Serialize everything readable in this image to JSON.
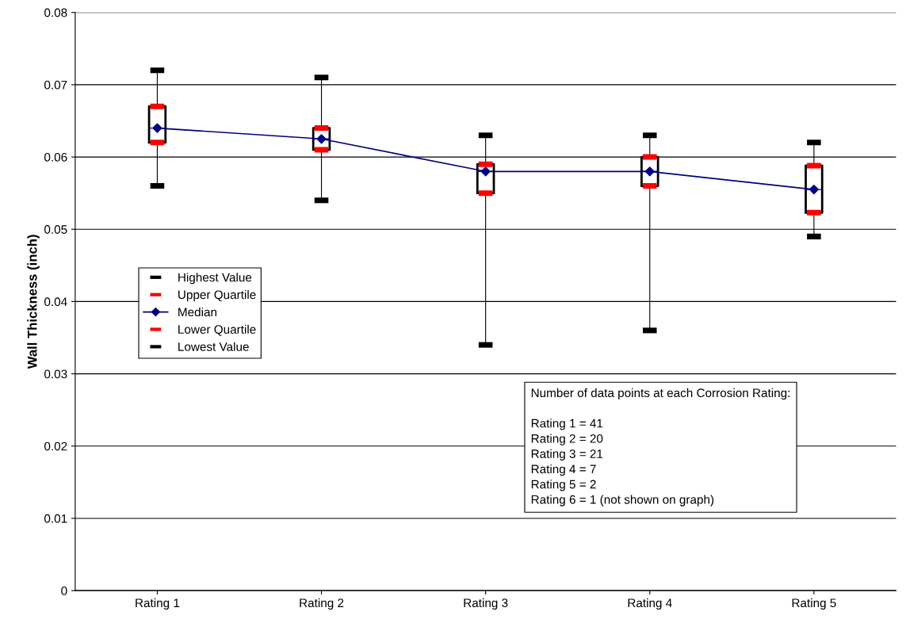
{
  "chart_data": {
    "type": "box",
    "ylabel": "Wall Thickness (inch)",
    "categories": [
      "Rating 1",
      "Rating 2",
      "Rating 3",
      "Rating 4",
      "Rating 5"
    ],
    "boxes": [
      {
        "low": 0.056,
        "q1": 0.062,
        "median": 0.064,
        "q3": 0.067,
        "high": 0.072
      },
      {
        "low": 0.054,
        "q1": 0.061,
        "median": 0.0625,
        "q3": 0.064,
        "high": 0.071
      },
      {
        "low": 0.034,
        "q1": 0.055,
        "median": 0.058,
        "q3": 0.059,
        "high": 0.063
      },
      {
        "low": 0.036,
        "q1": 0.056,
        "median": 0.058,
        "q3": 0.06,
        "high": 0.063
      },
      {
        "low": 0.049,
        "q1": 0.0523,
        "median": 0.0555,
        "q3": 0.0588,
        "high": 0.062
      }
    ],
    "series": [
      {
        "name": "Highest Value",
        "type": "scatter",
        "color": "#000000",
        "values": [
          0.072,
          0.071,
          0.063,
          0.063,
          0.062
        ]
      },
      {
        "name": "Upper Quartile",
        "type": "scatter",
        "color": "#ff0000",
        "values": [
          0.067,
          0.064,
          0.059,
          0.06,
          0.0588
        ]
      },
      {
        "name": "Median",
        "type": "line",
        "color": "#000080",
        "marker": "diamond",
        "values": [
          0.064,
          0.0625,
          0.058,
          0.058,
          0.0555
        ]
      },
      {
        "name": "Lower Quartile",
        "type": "scatter",
        "color": "#ff0000",
        "values": [
          0.062,
          0.061,
          0.055,
          0.056,
          0.0523
        ]
      },
      {
        "name": "Lowest Value",
        "type": "scatter",
        "color": "#000000",
        "values": [
          0.056,
          0.054,
          0.034,
          0.036,
          0.049
        ]
      }
    ],
    "ylim": [
      0,
      0.08
    ],
    "yticks": [
      {
        "value": 0,
        "label": "0"
      },
      0.01,
      0.02,
      0.03,
      0.04,
      0.05,
      0.06,
      0.07,
      0.08
    ],
    "grid": "y",
    "legend": "center left",
    "annotations": [
      "Number of data points at each Corrosion Rating:\n\nRating 1 = 41\nRating 2 = 20\nRating 3 = 21\nRating 4 = 7\nRating 5 = 2\nRating 6 = 1 (not shown on graph)"
    ]
  }
}
